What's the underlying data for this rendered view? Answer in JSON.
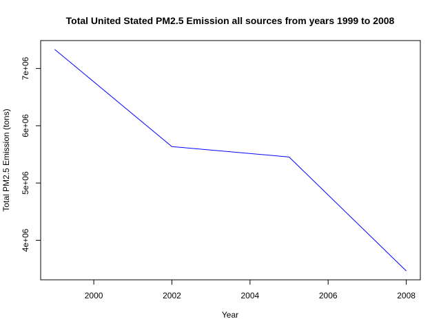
{
  "chart_data": {
    "type": "line",
    "title": "Total United Stated PM2.5 Emission all sources from years 1999 to 2008",
    "xlabel": "Year",
    "ylabel": "Total PM2.5 Emission (tons)",
    "x": [
      1999,
      2002,
      2005,
      2008
    ],
    "series": [
      {
        "values": [
          7332967,
          5635780,
          5454703,
          3464206
        ],
        "color": "#0000ff"
      }
    ],
    "xticks": [
      2000,
      2002,
      2004,
      2006,
      2008
    ],
    "xtick_labels": [
      "2000",
      "2002",
      "2004",
      "2006",
      "2008"
    ],
    "yticks": [
      4000000,
      5000000,
      6000000,
      7000000
    ],
    "ytick_labels": [
      "4e+06",
      "5e+06",
      "6e+06",
      "7e+06"
    ],
    "xlim": [
      1998.64,
      2008.36
    ],
    "ylim": [
      3309416,
      7487757
    ],
    "grid": false,
    "legend": "none"
  }
}
